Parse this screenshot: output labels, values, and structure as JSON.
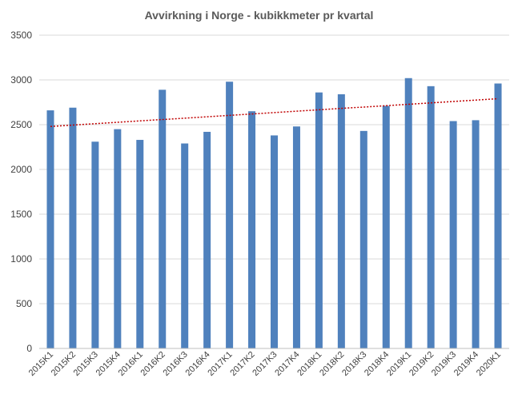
{
  "chart_data": {
    "type": "bar",
    "title": "Avvirkning i Norge - kubikkmeter pr kvartal",
    "xlabel": "",
    "ylabel": "",
    "ylim": [
      0,
      3500
    ],
    "yticks": [
      0,
      500,
      1000,
      1500,
      2000,
      2500,
      3000,
      3500
    ],
    "grid": true,
    "legend": "none",
    "categories": [
      "2015K1",
      "2015K2",
      "2015K3",
      "2015K4",
      "2016K1",
      "2016K2",
      "2016K3",
      "2016K4",
      "2017K1",
      "2017K2",
      "2017K3",
      "2017K4",
      "2018K1",
      "2018K2",
      "2018K3",
      "2018K4",
      "2019K1",
      "2019K2",
      "2019K3",
      "2019K4",
      "2020K1"
    ],
    "values": [
      2660,
      2690,
      2310,
      2450,
      2330,
      2890,
      2290,
      2420,
      2980,
      2650,
      2380,
      2480,
      2860,
      2840,
      2430,
      2710,
      3020,
      2930,
      2540,
      2550,
      2960
    ],
    "trendline": {
      "type": "linear",
      "start": 2480,
      "end": 2790,
      "color": "#c00000"
    },
    "colors": {
      "bar": "#4f81bd",
      "grid": "#d9d9d9",
      "axis": "#bfbfbf"
    }
  }
}
